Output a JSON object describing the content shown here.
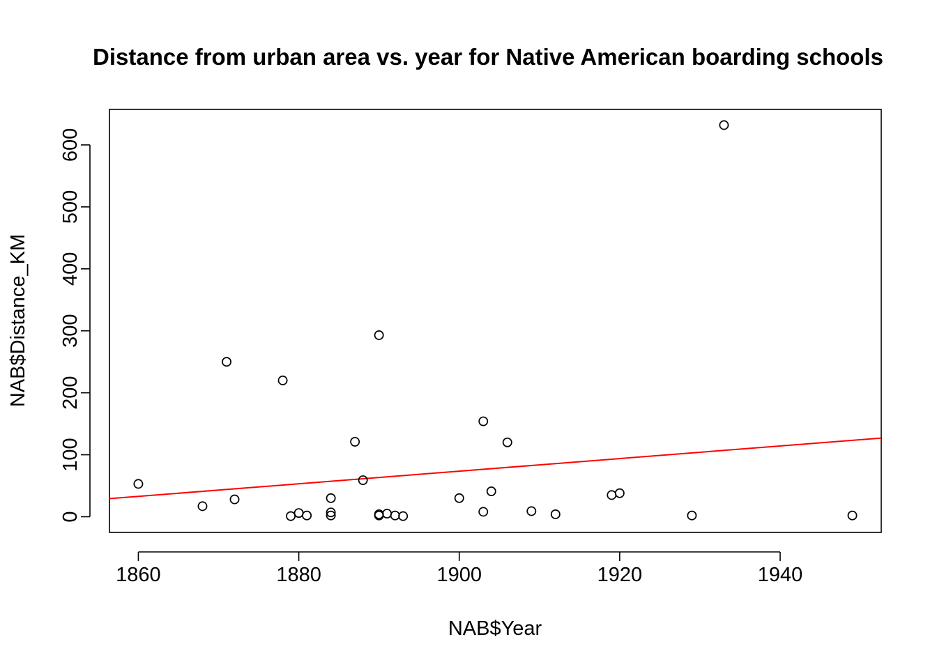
{
  "chart_data": {
    "type": "scatter",
    "title": "Distance from urban area vs. year for Native American boarding schools",
    "xlabel": "NAB$Year",
    "ylabel": "NAB$Distance_KM",
    "xlim": [
      1856.4,
      1952.6
    ],
    "ylim": [
      -25.3,
      657.3
    ],
    "x_ticks": [
      1860,
      1880,
      1900,
      1920,
      1940
    ],
    "x_tick_labels": [
      "1860",
      "1880",
      "1900",
      "1920",
      "1940"
    ],
    "y_ticks": [
      0,
      100,
      200,
      300,
      400,
      500,
      600
    ],
    "y_tick_labels": [
      "0",
      "100",
      "200",
      "300",
      "400",
      "500",
      "600"
    ],
    "grid": false,
    "legend": "none",
    "point_color": "#000000",
    "series": [
      {
        "points": [
          {
            "x": 1860,
            "y": 53
          },
          {
            "x": 1868,
            "y": 17
          },
          {
            "x": 1871,
            "y": 250
          },
          {
            "x": 1872,
            "y": 28
          },
          {
            "x": 1878,
            "y": 220
          },
          {
            "x": 1879,
            "y": 1
          },
          {
            "x": 1880,
            "y": 6
          },
          {
            "x": 1881,
            "y": 2
          },
          {
            "x": 1884,
            "y": 30
          },
          {
            "x": 1884,
            "y": 7
          },
          {
            "x": 1884,
            "y": 2
          },
          {
            "x": 1887,
            "y": 121
          },
          {
            "x": 1888,
            "y": 59
          },
          {
            "x": 1890,
            "y": 293
          },
          {
            "x": 1890,
            "y": 4
          },
          {
            "x": 1890,
            "y": 2
          },
          {
            "x": 1891,
            "y": 5
          },
          {
            "x": 1892,
            "y": 2
          },
          {
            "x": 1893,
            "y": 1
          },
          {
            "x": 1900,
            "y": 30
          },
          {
            "x": 1903,
            "y": 154
          },
          {
            "x": 1903,
            "y": 8
          },
          {
            "x": 1904,
            "y": 41
          },
          {
            "x": 1906,
            "y": 120
          },
          {
            "x": 1909,
            "y": 9
          },
          {
            "x": 1912,
            "y": 4
          },
          {
            "x": 1919,
            "y": 35
          },
          {
            "x": 1920,
            "y": 38
          },
          {
            "x": 1929,
            "y": 2
          },
          {
            "x": 1933,
            "y": 632
          },
          {
            "x": 1949,
            "y": 2
          }
        ]
      }
    ],
    "regression_line": {
      "color": "#ff0000",
      "intercept": -1858.6,
      "slope": 1.0169
    }
  }
}
